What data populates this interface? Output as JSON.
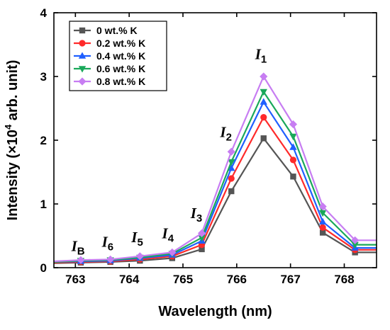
{
  "chart_data": {
    "type": "line",
    "xlabel": "Wavelength (nm)",
    "ylabel": {
      "prefix": "Intensity (×10",
      "sup": "4",
      "suffix": " arb. unit)"
    },
    "xlim": [
      762.6,
      768.6
    ],
    "ylim": [
      0,
      4
    ],
    "xticks": [
      763,
      764,
      765,
      766,
      767,
      768
    ],
    "yticks": [
      0,
      1,
      2,
      3,
      4
    ],
    "x": [
      762.6,
      763.1,
      763.65,
      764.2,
      764.8,
      765.35,
      765.9,
      766.5,
      767.05,
      767.6,
      768.2,
      768.6
    ],
    "legend_position": "top-left",
    "series": [
      {
        "name": "0 wt.% K",
        "color": "#555555",
        "marker": "square",
        "values": [
          0.07,
          0.08,
          0.09,
          0.11,
          0.15,
          0.29,
          1.2,
          2.03,
          1.43,
          0.55,
          0.24,
          0.24
        ]
      },
      {
        "name": "0.2 wt.% K",
        "color": "#ff2a2a",
        "marker": "circle",
        "values": [
          0.08,
          0.09,
          0.1,
          0.13,
          0.18,
          0.36,
          1.4,
          2.36,
          1.69,
          0.63,
          0.28,
          0.28
        ]
      },
      {
        "name": "0.4 wt.% K",
        "color": "#1f5fff",
        "marker": "triangle",
        "values": [
          0.09,
          0.1,
          0.11,
          0.15,
          0.2,
          0.42,
          1.56,
          2.6,
          1.89,
          0.72,
          0.31,
          0.31
        ]
      },
      {
        "name": "0.6 wt.% K",
        "color": "#1aa85a",
        "marker": "tri-down",
        "values": [
          0.09,
          0.11,
          0.12,
          0.16,
          0.22,
          0.47,
          1.66,
          2.76,
          2.06,
          0.86,
          0.36,
          0.36
        ]
      },
      {
        "name": "0.8 wt.% K",
        "color": "#c77df2",
        "marker": "diamond",
        "values": [
          0.1,
          0.12,
          0.13,
          0.18,
          0.24,
          0.54,
          1.82,
          3.0,
          2.25,
          0.96,
          0.43,
          0.43
        ]
      }
    ],
    "annotations": [
      {
        "letter": "I",
        "sub": "B",
        "x": 763.05,
        "y": 0.26
      },
      {
        "letter": "I",
        "sub": "6",
        "x": 763.6,
        "y": 0.33
      },
      {
        "letter": "I",
        "sub": "5",
        "x": 764.15,
        "y": 0.4
      },
      {
        "letter": "I",
        "sub": "4",
        "x": 764.72,
        "y": 0.46
      },
      {
        "letter": "I",
        "sub": "3",
        "x": 765.25,
        "y": 0.78
      },
      {
        "letter": "I",
        "sub": "2",
        "x": 765.8,
        "y": 2.05
      },
      {
        "letter": "I",
        "sub": "1",
        "x": 766.45,
        "y": 3.27
      }
    ]
  }
}
